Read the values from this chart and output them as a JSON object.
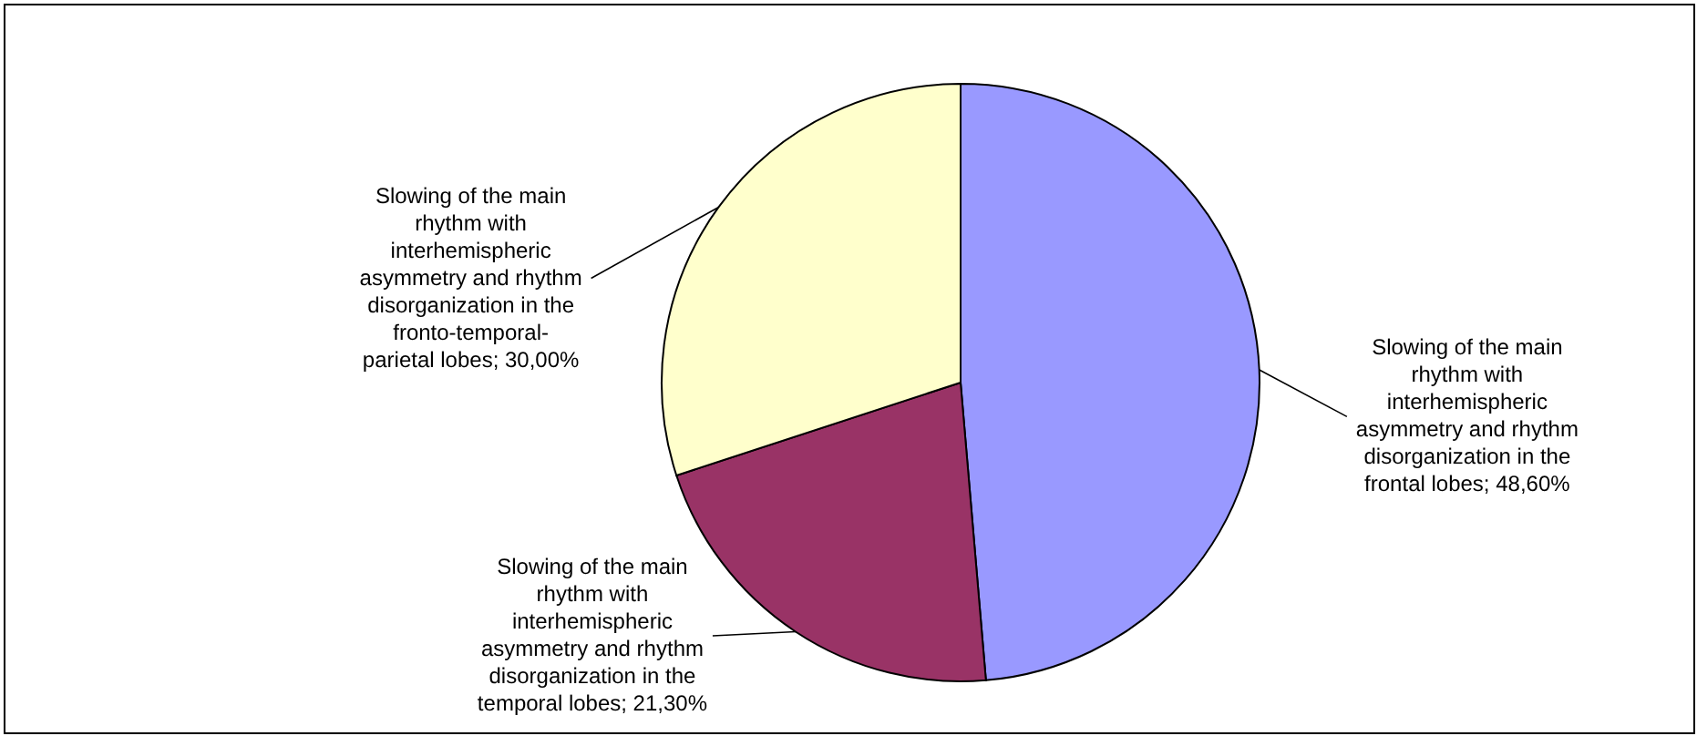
{
  "chart_data": {
    "type": "pie",
    "categories": [
      "Slowing of the main rhythm with interhemispheric asymmetry and rhythm disorganization in the frontal lobes",
      "Slowing of the main rhythm with interhemispheric asymmetry and rhythm disorganization in the temporal lobes",
      "Slowing of the main rhythm with interhemispheric asymmetry and rhythm disorganization in the fronto-temporal-parietal lobes"
    ],
    "values": [
      48.6,
      21.3,
      30.0
    ],
    "colors": [
      "#9999ff",
      "#993366",
      "#ffffcc"
    ],
    "value_labels": [
      "48,60%",
      "21,30%",
      "30,00%"
    ]
  }
}
